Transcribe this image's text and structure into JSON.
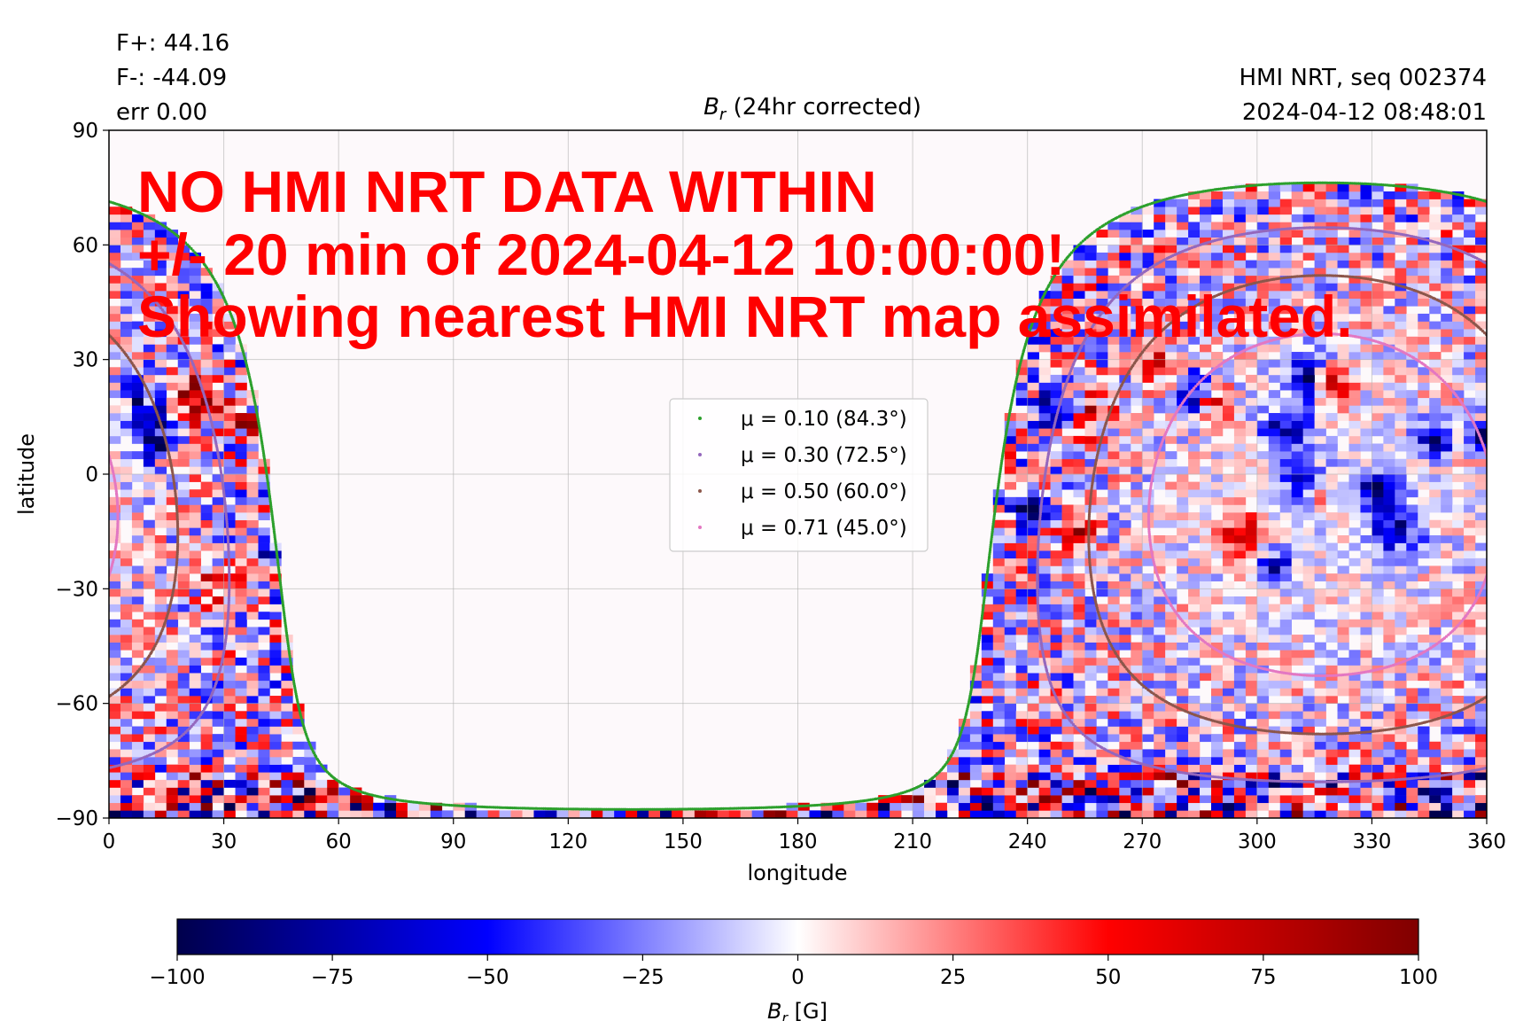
{
  "header": {
    "flux_plus": "F+: 44.16",
    "flux_minus": "F-: -44.09",
    "error": "err 0.00",
    "title_symbol": "B",
    "title_subscript": "r",
    "title_rest": " (24hr corrected)",
    "source": "HMI NRT, seq 002374",
    "timestamp": "2024-04-12 08:48:01"
  },
  "warning": {
    "lines": [
      "NO HMI NRT DATA WITHIN",
      "+/- 20 min of 2024-04-12 10:00:00!",
      "Showing nearest HMI NRT map assimilated."
    ],
    "color": "#ff0000"
  },
  "colorbar": {
    "label_symbol": "B",
    "label_subscript": "r",
    "label_unit": " [G]",
    "ticks": [
      -100,
      -75,
      -50,
      -25,
      0,
      25,
      50,
      75,
      100
    ],
    "tick_labels": [
      "−100",
      "−75",
      "−50",
      "−25",
      "0",
      "25",
      "50",
      "75",
      "100"
    ],
    "range": [
      -100,
      100
    ],
    "colormap": "seismic",
    "colors": [
      "#00004c",
      "#0000ff",
      "#ffffff",
      "#ff0000",
      "#800000"
    ]
  },
  "chart_data": {
    "type": "heatmap",
    "title": "Br (24hr corrected)",
    "xlabel": "longitude",
    "ylabel": "latitude",
    "xlim": [
      0,
      360
    ],
    "ylim": [
      -90,
      90
    ],
    "xticks": [
      0,
      30,
      60,
      90,
      120,
      150,
      180,
      210,
      240,
      270,
      300,
      330,
      360
    ],
    "xtick_labels": [
      "0",
      "30",
      "60",
      "90",
      "120",
      "150",
      "180",
      "210",
      "240",
      "270",
      "300",
      "330",
      "360"
    ],
    "yticks": [
      90,
      60,
      30,
      0,
      -30,
      -60,
      -90
    ],
    "ytick_labels": [
      "90",
      "60",
      "30",
      "0",
      "−30",
      "−60",
      "−90"
    ],
    "grid": true,
    "legend_position": "center",
    "value_range": [
      -100,
      100
    ],
    "observed_region": {
      "disk_center_lon": 317,
      "disk_center_lat": -8,
      "description_lon_edges": [
        233,
        47
      ]
    },
    "series": [
      {
        "name": "μ = 0.10 (84.3°)",
        "color": "#2ca02c",
        "mu": 0.1,
        "angle_deg": 84.3
      },
      {
        "name": "μ = 0.30 (72.5°)",
        "color": "#9467bd",
        "mu": 0.3,
        "angle_deg": 72.5
      },
      {
        "name": "μ = 0.50 (60.0°)",
        "color": "#8c564b",
        "mu": 0.5,
        "angle_deg": 60.0
      },
      {
        "name": "μ = 0.71 (45.0°)",
        "color": "#e377c2",
        "mu": 0.71,
        "angle_deg": 45.0
      }
    ]
  }
}
